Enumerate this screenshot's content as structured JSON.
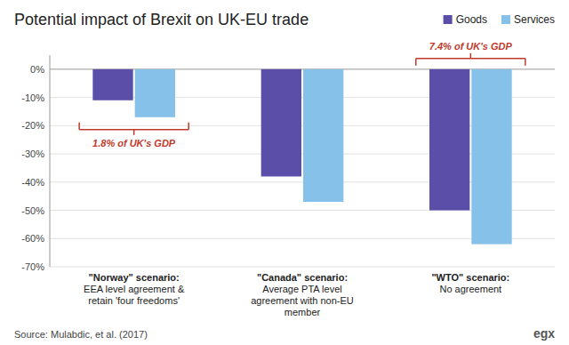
{
  "chart_data": {
    "type": "bar",
    "title": "Potential impact of Brexit on UK-EU trade",
    "categories": [
      "\"Norway\" scenario:\nEEA level agreement &\nretain 'four freedoms'",
      "\"Canada\" scenario:\nAverage PTA level\nagreement with non-EU\nmember",
      "\"WTO\" scenario:\nNo agreement"
    ],
    "series": [
      {
        "name": "Goods",
        "color": "#5b4ea8",
        "values": [
          -11,
          -38,
          -50
        ]
      },
      {
        "name": "Services",
        "color": "#85c1e9",
        "values": [
          -17,
          -47,
          -62
        ]
      }
    ],
    "ylim": [
      -70,
      5
    ],
    "yticks": [
      {
        "value": 0,
        "label": "0%"
      },
      {
        "value": -10,
        "label": "-10%"
      },
      {
        "value": -20,
        "label": "-20%"
      },
      {
        "value": -30,
        "label": "-30%"
      },
      {
        "value": -40,
        "label": "-40%"
      },
      {
        "value": -50,
        "label": "-50%"
      },
      {
        "value": -60,
        "label": "-60%"
      },
      {
        "value": -70,
        "label": "-70%"
      }
    ],
    "grid": true,
    "legend": "top-right",
    "annotations": [
      {
        "text": "1.8% of UK's GDP",
        "category": "\"Norway\" scenario:\nEEA level agreement &\nretain 'four freedoms'",
        "color": "#c0392b"
      },
      {
        "text": "7.4% of UK's GDP",
        "category": "\"WTO\" scenario:\nNo agreement",
        "color": "#c0392b"
      }
    ],
    "source": "Source: Mulabdic, et al. (2017)",
    "logo": "egx"
  }
}
